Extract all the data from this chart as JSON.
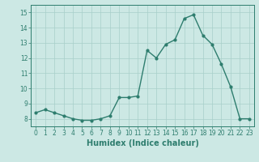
{
  "x": [
    0,
    1,
    2,
    3,
    4,
    5,
    6,
    7,
    8,
    9,
    10,
    11,
    12,
    13,
    14,
    15,
    16,
    17,
    18,
    19,
    20,
    21,
    22,
    23
  ],
  "y": [
    8.4,
    8.6,
    8.4,
    8.2,
    8.0,
    7.9,
    7.9,
    8.0,
    8.2,
    9.4,
    9.4,
    9.5,
    12.5,
    12.0,
    12.9,
    13.2,
    14.6,
    14.85,
    13.5,
    12.9,
    11.6,
    10.1,
    8.0,
    8.0
  ],
  "xlabel": "Humidex (Indice chaleur)",
  "xlim": [
    -0.5,
    23.5
  ],
  "ylim": [
    7.5,
    15.5
  ],
  "yticks": [
    8,
    9,
    10,
    11,
    12,
    13,
    14,
    15
  ],
  "xticks": [
    0,
    1,
    2,
    3,
    4,
    5,
    6,
    7,
    8,
    9,
    10,
    11,
    12,
    13,
    14,
    15,
    16,
    17,
    18,
    19,
    20,
    21,
    22,
    23
  ],
  "line_color": "#2e7d6e",
  "marker_color": "#2e7d6e",
  "bg_color": "#cce8e4",
  "grid_color": "#a8cfc9",
  "tick_label_fontsize": 5.5,
  "xlabel_fontsize": 7.0,
  "line_width": 1.0,
  "marker_size": 2.0
}
